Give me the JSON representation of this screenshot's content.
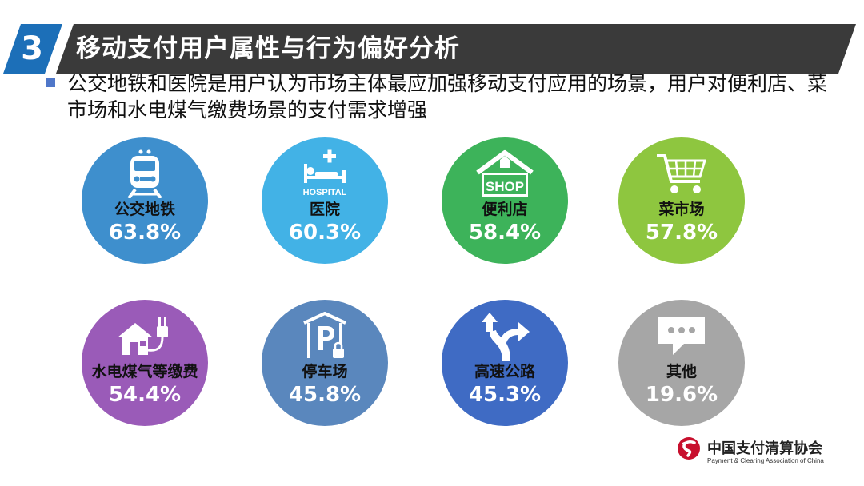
{
  "header": {
    "number": "3",
    "title": "移动支付用户属性与行为偏好分析"
  },
  "bullet": {
    "text": "公交地铁和医院是用户认为市场主体最应加强移动支付应用的场景，用户对便利店、菜市场和水电煤气缴费场景的支付需求增强"
  },
  "scenes": [
    {
      "label": "公交地铁",
      "value": "63.8%",
      "color": "#3e8fcd",
      "icon": "train-icon"
    },
    {
      "label": "医院",
      "value": "60.3%",
      "color": "#42b2e6",
      "icon": "hospital-bed-icon",
      "icon_text": "HOSPITAL"
    },
    {
      "label": "便利店",
      "value": "58.4%",
      "color": "#3db35a",
      "icon": "shop-icon",
      "icon_text": "SHOP"
    },
    {
      "label": "菜市场",
      "value": "57.8%",
      "color": "#8ec63f",
      "icon": "shopping-cart-icon"
    },
    {
      "label": "水电煤气等缴费",
      "value": "54.4%",
      "color": "#9a5bb8",
      "icon": "house-plug-icon"
    },
    {
      "label": "停车场",
      "value": "45.8%",
      "color": "#5a87bd",
      "icon": "parking-icon"
    },
    {
      "label": "高速公路",
      "value": "45.3%",
      "color": "#3f6bc4",
      "icon": "road-arrows-icon"
    },
    {
      "label": "其他",
      "value": "19.6%",
      "color": "#a6a6a6",
      "icon": "speech-bubble-icon"
    }
  ],
  "footer": {
    "org_cn": "中国支付清算协会",
    "org_en": "Payment & Clearing Association of China"
  }
}
